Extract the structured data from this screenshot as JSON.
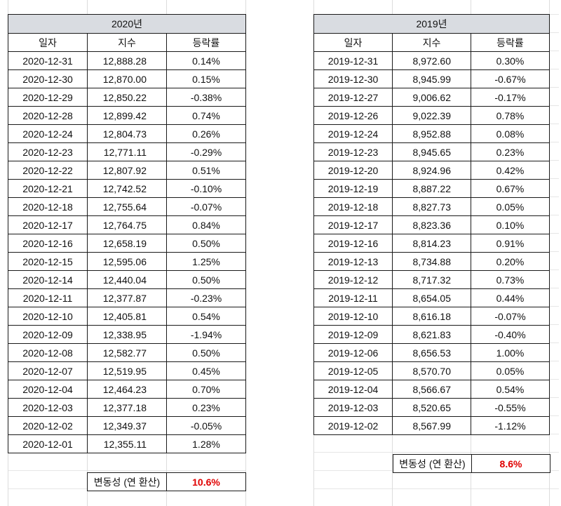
{
  "t2020": {
    "title": "2020년",
    "headers": [
      "일자",
      "지수",
      "등락률"
    ],
    "rows": [
      [
        "2020-12-31",
        "12,888.28",
        "0.14%"
      ],
      [
        "2020-12-30",
        "12,870.00",
        "0.15%"
      ],
      [
        "2020-12-29",
        "12,850.22",
        "-0.38%"
      ],
      [
        "2020-12-28",
        "12,899.42",
        "0.74%"
      ],
      [
        "2020-12-24",
        "12,804.73",
        "0.26%"
      ],
      [
        "2020-12-23",
        "12,771.11",
        "-0.29%"
      ],
      [
        "2020-12-22",
        "12,807.92",
        "0.51%"
      ],
      [
        "2020-12-21",
        "12,742.52",
        "-0.10%"
      ],
      [
        "2020-12-18",
        "12,755.64",
        "-0.07%"
      ],
      [
        "2020-12-17",
        "12,764.75",
        "0.84%"
      ],
      [
        "2020-12-16",
        "12,658.19",
        "0.50%"
      ],
      [
        "2020-12-15",
        "12,595.06",
        "1.25%"
      ],
      [
        "2020-12-14",
        "12,440.04",
        "0.50%"
      ],
      [
        "2020-12-11",
        "12,377.87",
        "-0.23%"
      ],
      [
        "2020-12-10",
        "12,405.81",
        "0.54%"
      ],
      [
        "2020-12-09",
        "12,338.95",
        "-1.94%"
      ],
      [
        "2020-12-08",
        "12,582.77",
        "0.50%"
      ],
      [
        "2020-12-07",
        "12,519.95",
        "0.45%"
      ],
      [
        "2020-12-04",
        "12,464.23",
        "0.70%"
      ],
      [
        "2020-12-03",
        "12,377.18",
        "0.23%"
      ],
      [
        "2020-12-02",
        "12,349.37",
        "-0.05%"
      ],
      [
        "2020-12-01",
        "12,355.11",
        "1.28%"
      ]
    ],
    "volatility_label": "변동성 (연 환산)",
    "volatility_value": "10.6%"
  },
  "t2019": {
    "title": "2019년",
    "headers": [
      "일자",
      "지수",
      "등락률"
    ],
    "rows": [
      [
        "2019-12-31",
        "8,972.60",
        "0.30%"
      ],
      [
        "2019-12-30",
        "8,945.99",
        "-0.67%"
      ],
      [
        "2019-12-27",
        "9,006.62",
        "-0.17%"
      ],
      [
        "2019-12-26",
        "9,022.39",
        "0.78%"
      ],
      [
        "2019-12-24",
        "8,952.88",
        "0.08%"
      ],
      [
        "2019-12-23",
        "8,945.65",
        "0.23%"
      ],
      [
        "2019-12-20",
        "8,924.96",
        "0.42%"
      ],
      [
        "2019-12-19",
        "8,887.22",
        "0.67%"
      ],
      [
        "2019-12-18",
        "8,827.73",
        "0.05%"
      ],
      [
        "2019-12-17",
        "8,823.36",
        "0.10%"
      ],
      [
        "2019-12-16",
        "8,814.23",
        "0.91%"
      ],
      [
        "2019-12-13",
        "8,734.88",
        "0.20%"
      ],
      [
        "2019-12-12",
        "8,717.32",
        "0.73%"
      ],
      [
        "2019-12-11",
        "8,654.05",
        "0.44%"
      ],
      [
        "2019-12-10",
        "8,616.18",
        "-0.07%"
      ],
      [
        "2019-12-09",
        "8,621.83",
        "-0.40%"
      ],
      [
        "2019-12-06",
        "8,656.53",
        "1.00%"
      ],
      [
        "2019-12-05",
        "8,570.70",
        "0.05%"
      ],
      [
        "2019-12-04",
        "8,566.67",
        "0.54%"
      ],
      [
        "2019-12-03",
        "8,520.65",
        "-0.55%"
      ],
      [
        "2019-12-02",
        "8,567.99",
        "-1.12%"
      ]
    ],
    "volatility_label": "변동성 (연 환산)",
    "volatility_value": "8.6%",
    "accent_color": "#e00000",
    "title_bg": "#d9dce1"
  }
}
